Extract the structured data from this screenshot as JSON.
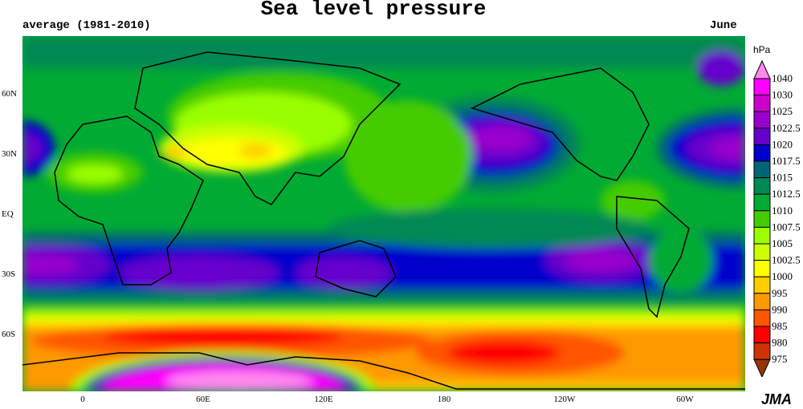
{
  "title": "Sea level pressure",
  "subtitle_left": "average (1981-2010)",
  "subtitle_right": "June",
  "logo": "JMA",
  "lat_labels": [
    "60N",
    "30N",
    "EQ",
    "30S",
    "60S"
  ],
  "lon_labels": [
    "0",
    "60E",
    "120E",
    "180",
    "120W",
    "60W"
  ],
  "legend": {
    "unit": "hPa",
    "labels": [
      "1040",
      "1030",
      "1025",
      "1022.5",
      "1020",
      "1017.5",
      "1015",
      "1012.5",
      "1010",
      "1007.5",
      "1005",
      "1002.5",
      "1000",
      "995",
      "990",
      "985",
      "980",
      "975"
    ],
    "colors": [
      "#ff88ee",
      "#ff00ff",
      "#cc00cc",
      "#9900cc",
      "#6600cc",
      "#0000cc",
      "#006677",
      "#008855",
      "#00aa33",
      "#44cc00",
      "#99ff00",
      "#ccff00",
      "#ffff00",
      "#ffcc00",
      "#ff9900",
      "#ff5500",
      "#ff0000",
      "#cc3300",
      "#993300"
    ]
  }
}
